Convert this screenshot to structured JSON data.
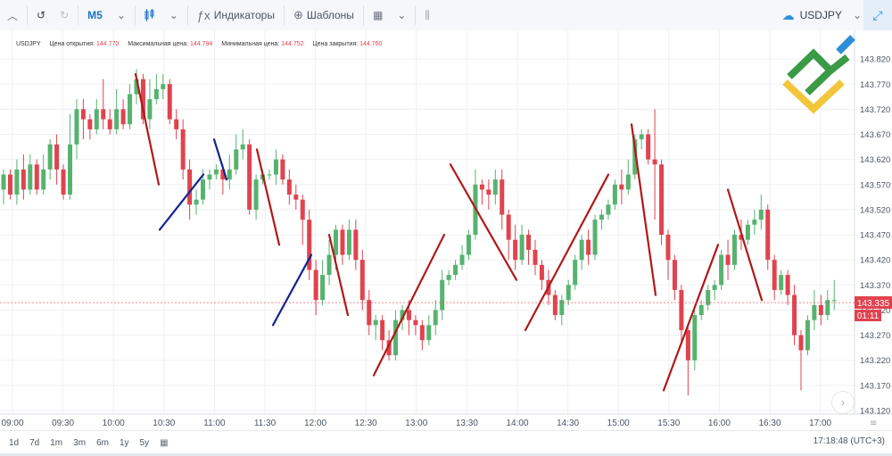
{
  "toolbar": {
    "timeframe": "M5",
    "indicators_label": "Индикаторы",
    "templates_label": "Шаблоны",
    "symbol": "USDJPY"
  },
  "ohlc_bar": {
    "symbol": "USDJPY",
    "open_label": "Цена открытия:",
    "open": "144.770",
    "high_label": "Максимальная цена:",
    "high": "144.794",
    "low_label": "Минимальная цена:",
    "low": "144.752",
    "close_label": "Цена закрытия:",
    "close": "144.760"
  },
  "periods": [
    "1d",
    "7d",
    "1m",
    "3m",
    "6m",
    "1y",
    "5y"
  ],
  "clock": "17:18:48 (UTC+3)",
  "colors": {
    "bull": "#56b36f",
    "bear": "#e0434f",
    "trend_red": "#b01818",
    "trend_blue": "#13238f",
    "price_tag": "#e0434f"
  },
  "chart_data": {
    "type": "candlestick",
    "symbol": "USDJPY",
    "timeframe": "M5",
    "ylim": [
      143.12,
      143.87
    ],
    "y_ticks": [
      "143.820",
      "143.770",
      "143.720",
      "143.670",
      "143.620",
      "143.570",
      "143.520",
      "143.470",
      "143.420",
      "143.370",
      "143.320",
      "143.270",
      "143.220",
      "143.170",
      "143.120"
    ],
    "x_ticks": [
      "09:00",
      "09:30",
      "10:00",
      "10:30",
      "11:00",
      "11:30",
      "12:00",
      "12:30",
      "13:00",
      "13:30",
      "14:00",
      "14:30",
      "15:00",
      "15:30",
      "16:00",
      "16:30",
      "17:00"
    ],
    "current_price": "143.335",
    "countdown": "01:11",
    "candles": [
      [
        143.56,
        143.59,
        143.53,
        143.6
      ],
      [
        143.59,
        143.55,
        143.54,
        143.6
      ],
      [
        143.55,
        143.6,
        143.53,
        143.62
      ],
      [
        143.6,
        143.56,
        143.54,
        143.63
      ],
      [
        143.56,
        143.61,
        143.55,
        143.63
      ],
      [
        143.61,
        143.56,
        143.55,
        143.62
      ],
      [
        143.56,
        143.6,
        143.55,
        143.63
      ],
      [
        143.6,
        143.65,
        143.58,
        143.66
      ],
      [
        143.65,
        143.6,
        143.57,
        143.67
      ],
      [
        143.6,
        143.55,
        143.54,
        143.61
      ],
      [
        143.55,
        143.65,
        143.54,
        143.71
      ],
      [
        143.65,
        143.72,
        143.62,
        143.74
      ],
      [
        143.72,
        143.7,
        143.66,
        143.74
      ],
      [
        143.7,
        143.68,
        143.66,
        143.71
      ],
      [
        143.68,
        143.72,
        143.67,
        143.74
      ],
      [
        143.72,
        143.7,
        143.68,
        143.78
      ],
      [
        143.7,
        143.68,
        143.67,
        143.72
      ],
      [
        143.68,
        143.72,
        143.67,
        143.76
      ],
      [
        143.72,
        143.69,
        143.68,
        143.74
      ],
      [
        143.69,
        143.75,
        143.68,
        143.77
      ],
      [
        143.75,
        143.78,
        143.73,
        143.8
      ],
      [
        143.78,
        143.7,
        143.69,
        143.79
      ],
      [
        143.7,
        143.74,
        143.68,
        143.78
      ],
      [
        143.74,
        143.76,
        143.73,
        143.79
      ],
      [
        143.76,
        143.77,
        143.74,
        143.79
      ],
      [
        143.77,
        143.7,
        143.69,
        143.78
      ],
      [
        143.7,
        143.68,
        143.66,
        143.72
      ],
      [
        143.68,
        143.6,
        143.58,
        143.7
      ],
      [
        143.6,
        143.53,
        143.5,
        143.62
      ],
      [
        143.53,
        143.54,
        143.51,
        143.56
      ],
      [
        143.54,
        143.58,
        143.53,
        143.6
      ],
      [
        143.58,
        143.59,
        143.56,
        143.6
      ],
      [
        143.59,
        143.6,
        143.58,
        143.61
      ],
      [
        143.6,
        143.58,
        143.55,
        143.61
      ],
      [
        143.58,
        143.6,
        143.56,
        143.63
      ],
      [
        143.6,
        143.64,
        143.59,
        143.67
      ],
      [
        143.64,
        143.65,
        143.62,
        143.68
      ],
      [
        143.65,
        143.52,
        143.51,
        143.66
      ],
      [
        143.52,
        143.58,
        143.5,
        143.59
      ],
      [
        143.58,
        143.59,
        143.57,
        143.6
      ],
      [
        143.59,
        143.59,
        143.58,
        143.6
      ],
      [
        143.59,
        143.62,
        143.57,
        143.64
      ],
      [
        143.62,
        143.58,
        143.57,
        143.63
      ],
      [
        143.58,
        143.55,
        143.53,
        143.6
      ],
      [
        143.55,
        143.54,
        143.52,
        143.57
      ],
      [
        143.54,
        143.5,
        143.45,
        143.55
      ],
      [
        143.5,
        143.4,
        143.38,
        143.52
      ],
      [
        143.4,
        143.34,
        143.31,
        143.42
      ],
      [
        143.34,
        143.39,
        143.33,
        143.42
      ],
      [
        143.39,
        143.43,
        143.37,
        143.46
      ],
      [
        143.43,
        143.48,
        143.4,
        143.49
      ],
      [
        143.48,
        143.43,
        143.41,
        143.49
      ],
      [
        143.43,
        143.48,
        143.42,
        143.5
      ],
      [
        143.48,
        143.42,
        143.4,
        143.5
      ],
      [
        143.42,
        143.34,
        143.32,
        143.44
      ],
      [
        143.34,
        143.29,
        143.27,
        143.36
      ],
      [
        143.29,
        143.3,
        143.26,
        143.31
      ],
      [
        143.3,
        143.26,
        143.24,
        143.31
      ],
      [
        143.26,
        143.23,
        143.22,
        143.28
      ],
      [
        143.23,
        143.3,
        143.22,
        143.32
      ],
      [
        143.3,
        143.32,
        143.28,
        143.33
      ],
      [
        143.32,
        143.3,
        143.27,
        143.34
      ],
      [
        143.3,
        143.29,
        143.27,
        143.31
      ],
      [
        143.29,
        143.26,
        143.24,
        143.3
      ],
      [
        143.26,
        143.29,
        143.25,
        143.31
      ],
      [
        143.29,
        143.32,
        143.27,
        143.34
      ],
      [
        143.32,
        143.38,
        143.3,
        143.4
      ],
      [
        143.38,
        143.39,
        143.37,
        143.4
      ],
      [
        143.39,
        143.41,
        143.38,
        143.42
      ],
      [
        143.41,
        143.43,
        143.4,
        143.45
      ],
      [
        143.43,
        143.47,
        143.42,
        143.48
      ],
      [
        143.47,
        143.57,
        143.46,
        143.6
      ],
      [
        143.57,
        143.56,
        143.53,
        143.58
      ],
      [
        143.56,
        143.55,
        143.52,
        143.58
      ],
      [
        143.55,
        143.58,
        143.53,
        143.6
      ],
      [
        143.58,
        143.51,
        143.48,
        143.6
      ],
      [
        143.51,
        143.46,
        143.42,
        143.52
      ],
      [
        143.46,
        143.42,
        143.4,
        143.49
      ],
      [
        143.42,
        143.47,
        143.41,
        143.49
      ],
      [
        143.47,
        143.44,
        143.41,
        143.48
      ],
      [
        143.44,
        143.41,
        143.39,
        143.46
      ],
      [
        143.41,
        143.38,
        143.36,
        143.42
      ],
      [
        143.38,
        143.35,
        143.33,
        143.4
      ],
      [
        143.35,
        143.31,
        143.3,
        143.36
      ],
      [
        143.31,
        143.34,
        143.29,
        143.35
      ],
      [
        143.34,
        143.37,
        143.33,
        143.38
      ],
      [
        143.37,
        143.42,
        143.36,
        143.43
      ],
      [
        143.42,
        143.46,
        143.4,
        143.47
      ],
      [
        143.46,
        143.43,
        143.41,
        143.48
      ],
      [
        143.43,
        143.5,
        143.42,
        143.51
      ],
      [
        143.5,
        143.51,
        143.48,
        143.52
      ],
      [
        143.51,
        143.53,
        143.5,
        143.54
      ],
      [
        143.53,
        143.57,
        143.52,
        143.58
      ],
      [
        143.57,
        143.56,
        143.53,
        143.6
      ],
      [
        143.56,
        143.59,
        143.55,
        143.62
      ],
      [
        143.59,
        143.66,
        143.58,
        143.67
      ],
      [
        143.66,
        143.67,
        143.64,
        143.68
      ],
      [
        143.67,
        143.62,
        143.61,
        143.68
      ],
      [
        143.62,
        143.61,
        143.5,
        143.72
      ],
      [
        143.61,
        143.47,
        143.45,
        143.62
      ],
      [
        143.47,
        143.42,
        143.38,
        143.48
      ],
      [
        143.42,
        143.36,
        143.34,
        143.43
      ],
      [
        143.36,
        143.28,
        143.25,
        143.37
      ],
      [
        143.28,
        143.22,
        143.15,
        143.29
      ],
      [
        143.22,
        143.31,
        143.2,
        143.32
      ],
      [
        143.31,
        143.33,
        143.3,
        143.34
      ],
      [
        143.33,
        143.36,
        143.32,
        143.37
      ],
      [
        143.36,
        143.37,
        143.34,
        143.38
      ],
      [
        143.37,
        143.43,
        143.36,
        143.44
      ],
      [
        143.43,
        143.41,
        143.38,
        143.46
      ],
      [
        143.41,
        143.47,
        143.4,
        143.48
      ],
      [
        143.47,
        143.46,
        143.44,
        143.5
      ],
      [
        143.46,
        143.49,
        143.45,
        143.5
      ],
      [
        143.49,
        143.5,
        143.47,
        143.52
      ],
      [
        143.5,
        143.52,
        143.48,
        143.55
      ],
      [
        143.52,
        143.42,
        143.4,
        143.53
      ],
      [
        143.42,
        143.36,
        143.34,
        143.43
      ],
      [
        143.36,
        143.39,
        143.35,
        143.4
      ],
      [
        143.39,
        143.35,
        143.33,
        143.4
      ],
      [
        143.35,
        143.27,
        143.25,
        143.37
      ],
      [
        143.27,
        143.24,
        143.16,
        143.28
      ],
      [
        143.24,
        143.3,
        143.23,
        143.31
      ],
      [
        143.3,
        143.33,
        143.28,
        143.36
      ],
      [
        143.33,
        143.31,
        143.29,
        143.35
      ],
      [
        143.31,
        143.34,
        143.3,
        143.36
      ],
      [
        143.34,
        143.34,
        143.32,
        143.38
      ]
    ],
    "trendlines": [
      {
        "color": "red",
        "x1": 0.152,
        "y1": 143.79,
        "x2": 0.178,
        "y2": 143.57
      },
      {
        "color": "blue",
        "x1": 0.179,
        "y1": 143.48,
        "x2": 0.228,
        "y2": 143.59
      },
      {
        "color": "blue",
        "x1": 0.24,
        "y1": 143.66,
        "x2": 0.254,
        "y2": 143.58
      },
      {
        "color": "red",
        "x1": 0.288,
        "y1": 143.64,
        "x2": 0.313,
        "y2": 143.45
      },
      {
        "color": "blue",
        "x1": 0.306,
        "y1": 143.29,
        "x2": 0.349,
        "y2": 143.43
      },
      {
        "color": "red",
        "x1": 0.369,
        "y1": 143.47,
        "x2": 0.39,
        "y2": 143.31
      },
      {
        "color": "red",
        "x1": 0.419,
        "y1": 143.19,
        "x2": 0.498,
        "y2": 143.47
      },
      {
        "color": "red",
        "x1": 0.505,
        "y1": 143.61,
        "x2": 0.579,
        "y2": 143.38
      },
      {
        "color": "red",
        "x1": 0.589,
        "y1": 143.28,
        "x2": 0.682,
        "y2": 143.59
      },
      {
        "color": "red",
        "x1": 0.708,
        "y1": 143.69,
        "x2": 0.735,
        "y2": 143.35
      },
      {
        "color": "red",
        "x1": 0.744,
        "y1": 143.16,
        "x2": 0.805,
        "y2": 143.45
      },
      {
        "color": "red",
        "x1": 0.816,
        "y1": 143.56,
        "x2": 0.854,
        "y2": 143.34
      }
    ]
  }
}
